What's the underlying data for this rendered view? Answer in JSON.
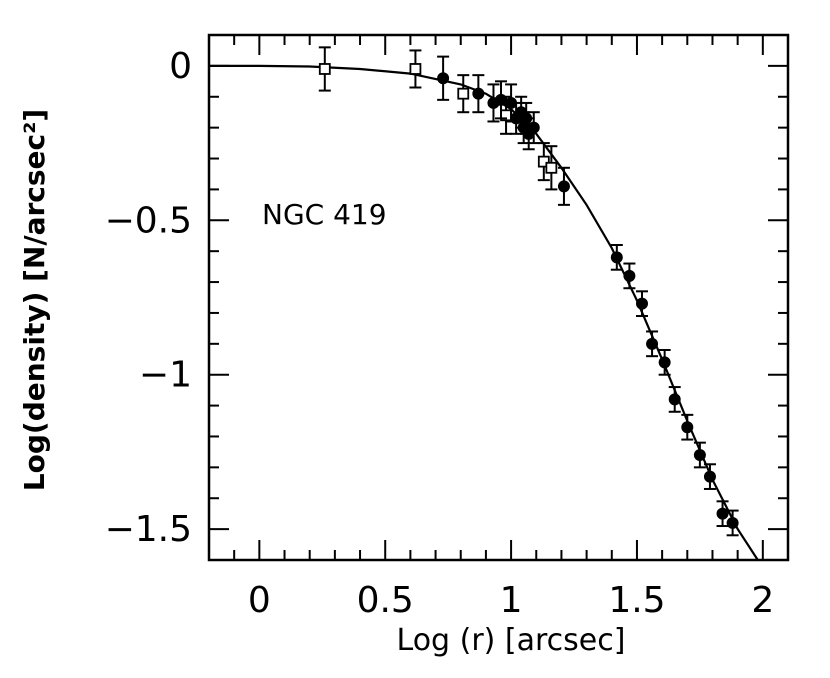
{
  "chart_data": {
    "type": "scatter",
    "title": "",
    "xlabel": "Log (r) [arcsec]",
    "ylabel": "Log(density) [N/arcsec²]",
    "annotation": "NGC 419",
    "xlim": [
      -0.2,
      2.1
    ],
    "ylim": [
      -1.6,
      0.1
    ],
    "x_ticks": [
      {
        "value": 0,
        "label": "0"
      },
      {
        "value": 0.5,
        "label": "0.5"
      },
      {
        "value": 1,
        "label": "1"
      },
      {
        "value": 1.5,
        "label": "1.5"
      },
      {
        "value": 2,
        "label": "2"
      }
    ],
    "y_ticks": [
      {
        "value": 0,
        "label": "0"
      },
      {
        "value": -0.5,
        "label": "−0.5"
      },
      {
        "value": -1,
        "label": "−1"
      },
      {
        "value": -1.5,
        "label": "−1.5"
      }
    ],
    "x_minor_step": 0.1,
    "y_minor_step": 0.1,
    "grid": false,
    "series": [
      {
        "marker": "open-square",
        "points": [
          {
            "x": 0.26,
            "y": -0.01,
            "err": 0.07
          },
          {
            "x": 0.62,
            "y": -0.01,
            "err": 0.06
          },
          {
            "x": 0.81,
            "y": -0.09,
            "err": 0.06
          },
          {
            "x": 0.98,
            "y": -0.16,
            "err": 0.06
          },
          {
            "x": 1.13,
            "y": -0.31,
            "err": 0.06
          },
          {
            "x": 1.16,
            "y": -0.33,
            "err": 0.07
          }
        ]
      },
      {
        "marker": "filled-circle",
        "points": [
          {
            "x": 0.73,
            "y": -0.04,
            "err": 0.07
          },
          {
            "x": 0.87,
            "y": -0.09,
            "err": 0.06
          },
          {
            "x": 0.93,
            "y": -0.12,
            "err": 0.06
          },
          {
            "x": 0.96,
            "y": -0.11,
            "err": 0.06
          },
          {
            "x": 1.0,
            "y": -0.12,
            "err": 0.06
          },
          {
            "x": 1.02,
            "y": -0.17,
            "err": 0.05
          },
          {
            "x": 1.04,
            "y": -0.15,
            "err": 0.05
          },
          {
            "x": 1.05,
            "y": -0.2,
            "err": 0.05
          },
          {
            "x": 1.06,
            "y": -0.17,
            "err": 0.05
          },
          {
            "x": 1.07,
            "y": -0.22,
            "err": 0.05
          },
          {
            "x": 1.09,
            "y": -0.2,
            "err": 0.05
          },
          {
            "x": 1.21,
            "y": -0.39,
            "err": 0.06
          },
          {
            "x": 1.42,
            "y": -0.62,
            "err": 0.04
          },
          {
            "x": 1.47,
            "y": -0.68,
            "err": 0.04
          },
          {
            "x": 1.52,
            "y": -0.77,
            "err": 0.04
          },
          {
            "x": 1.56,
            "y": -0.9,
            "err": 0.04
          },
          {
            "x": 1.61,
            "y": -0.96,
            "err": 0.04
          },
          {
            "x": 1.65,
            "y": -1.08,
            "err": 0.04
          },
          {
            "x": 1.7,
            "y": -1.17,
            "err": 0.04
          },
          {
            "x": 1.75,
            "y": -1.26,
            "err": 0.04
          },
          {
            "x": 1.79,
            "y": -1.33,
            "err": 0.04
          },
          {
            "x": 1.84,
            "y": -1.45,
            "err": 0.04
          },
          {
            "x": 1.88,
            "y": -1.48,
            "err": 0.04
          }
        ]
      }
    ],
    "fit_curve": {
      "style": "solid",
      "points": [
        [
          -0.2,
          0.0
        ],
        [
          0.0,
          0.0
        ],
        [
          0.2,
          -0.002
        ],
        [
          0.4,
          -0.01
        ],
        [
          0.6,
          -0.025
        ],
        [
          0.8,
          -0.06
        ],
        [
          0.9,
          -0.09
        ],
        [
          1.0,
          -0.14
        ],
        [
          1.1,
          -0.22
        ],
        [
          1.2,
          -0.33
        ],
        [
          1.3,
          -0.45
        ],
        [
          1.4,
          -0.59
        ],
        [
          1.5,
          -0.76
        ],
        [
          1.6,
          -0.95
        ],
        [
          1.7,
          -1.15
        ],
        [
          1.8,
          -1.34
        ],
        [
          1.9,
          -1.5
        ],
        [
          1.98,
          -1.6
        ]
      ]
    }
  }
}
